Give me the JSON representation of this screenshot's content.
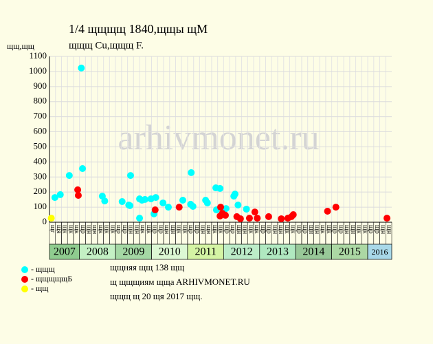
{
  "chart_data": {
    "type": "scatter",
    "title": "1/4 щщщщ 1840,щщы щМ",
    "subtitle": "щщщ Cu,щщщ F.",
    "y_label": "щщ,щщ",
    "watermark": "arhivmonet.ru",
    "xlim": [
      0,
      57
    ],
    "ylim": [
      0,
      1100
    ],
    "yticks": [
      0,
      100,
      200,
      300,
      400,
      500,
      600,
      700,
      800,
      900,
      1000,
      1100
    ],
    "grid": true,
    "periods": [
      "щг",
      "щя",
      "щк",
      "щк",
      "щк",
      "щр",
      "щн",
      "щн",
      "щк",
      "щк",
      "щк",
      "щр",
      "щр",
      "щн",
      "щн",
      "щк",
      "щк",
      "щр",
      "щр",
      "щн",
      "щн",
      "щк",
      "щк",
      "щр",
      "щр",
      "щн",
      "щн",
      "щк",
      "щк",
      "щр",
      "щр",
      "щн",
      "щн",
      "щк",
      "щк",
      "щр",
      "щр",
      "щн",
      "щн",
      "щк",
      "щк",
      "щр",
      "щр",
      "щн",
      "щн",
      "щк",
      "щк",
      "щр",
      "щр",
      "щн",
      "щн",
      "щк",
      "щк",
      "щр",
      "щр",
      "щн",
      "щн"
    ],
    "years": [
      {
        "label": "2007",
        "span": 5,
        "color": "#8fcc8f"
      },
      {
        "label": "2008",
        "span": 6,
        "color": "#c4f0c4"
      },
      {
        "label": "2009",
        "span": 6,
        "color": "#a4d8a4"
      },
      {
        "label": "2010",
        "span": 6,
        "color": "#dcf8d4"
      },
      {
        "label": "2011",
        "span": 6,
        "color": "#d4f4a4"
      },
      {
        "label": "2012",
        "span": 6,
        "color": "#bcecc8"
      },
      {
        "label": "2013",
        "span": 6,
        "color": "#b0e8c0"
      },
      {
        "label": "2014",
        "span": 6,
        "color": "#98c898"
      },
      {
        "label": "2015",
        "span": 6,
        "color": "#acd8a4"
      },
      {
        "label": "2016",
        "span": 4,
        "color": "#a8d8e8"
      }
    ],
    "series": [
      {
        "name": "- щщщ",
        "color": "#00ffff",
        "x": [
          0.9,
          1.8,
          3.3,
          5.3,
          5.5,
          8.8,
          9.2,
          12.1,
          13.2,
          13.4,
          13.5,
          15.0,
          15.0,
          15.4,
          15.9,
          16.9,
          17.4,
          17.7,
          18.9,
          19.8,
          22.2,
          23.5,
          23.6,
          23.9,
          26.0,
          26.3,
          27.7,
          28.4,
          27.8,
          29.4,
          30.7,
          30.9,
          31.4,
          32.8
        ],
        "values": [
          164,
          183,
          310,
          1023,
          356,
          173,
          141,
          137,
          114,
          110,
          310,
          155,
          27,
          146,
          151,
          155,
          55,
          164,
          128,
          100,
          146,
          119,
          329,
          105,
          146,
          128,
          228,
          224,
          82,
          91,
          173,
          187,
          114,
          87
        ]
      },
      {
        "name": "- щщщщщБ",
        "color": "#ff0000",
        "x": [
          4.7,
          4.8,
          17.6,
          21.6,
          28.4,
          28.5,
          28.8,
          29.3,
          31.2,
          31.8,
          33.3,
          34.2,
          34.6,
          36.5,
          38.6,
          39.7,
          40.3,
          40.6,
          46.3,
          47.7,
          56.2
        ],
        "values": [
          215,
          178,
          82,
          100,
          41,
          100,
          59,
          46,
          37,
          23,
          27,
          68,
          27,
          37,
          23,
          27,
          37,
          50,
          73,
          100,
          27
        ]
      },
      {
        "name": "- щщ",
        "color": "#ffff00",
        "x": [
          0.3
        ],
        "values": [
          27
        ]
      }
    ],
    "notes": [
      "щщняя щщ 138 щщ",
      "щ щщщиям щщa ARHIVMONET.RU",
      "щщщ щ 20 щя 2017 щщ."
    ]
  }
}
